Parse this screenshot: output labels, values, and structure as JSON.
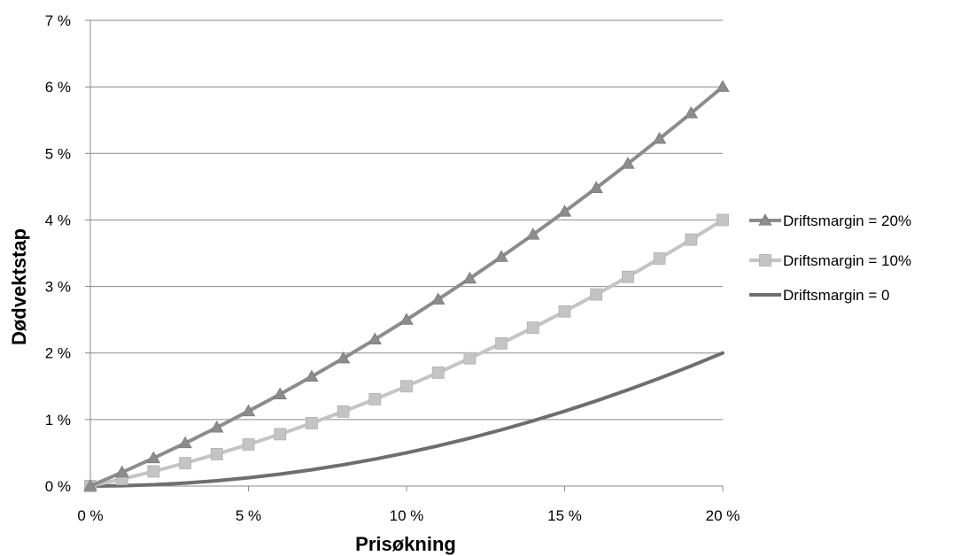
{
  "chart_data": {
    "type": "line",
    "title": "",
    "xlabel": "Prisøkning",
    "ylabel": "Dødvektstap",
    "xlim": [
      0,
      20
    ],
    "ylim": [
      0,
      7
    ],
    "x_ticks": [
      0,
      5,
      10,
      15,
      20
    ],
    "x_tick_labels": [
      "0 %",
      "5 %",
      "10 %",
      "15 %",
      "20 %"
    ],
    "y_ticks": [
      0,
      1,
      2,
      3,
      4,
      5,
      6,
      7
    ],
    "y_tick_labels": [
      "0 %",
      "1 %",
      "2 %",
      "3 %",
      "4 %",
      "5 %",
      "6 %",
      "7 %"
    ],
    "grid": "horizontal",
    "legend_position": "right",
    "x": [
      0,
      1,
      2,
      3,
      4,
      5,
      6,
      7,
      8,
      9,
      10,
      11,
      12,
      13,
      14,
      15,
      16,
      17,
      18,
      19,
      20
    ],
    "series": [
      {
        "name": "Driftsmargin = 20%",
        "marker": "triangle",
        "color": "#8c8c8c",
        "values": [
          0,
          0.205,
          0.42,
          0.645,
          0.88,
          1.125,
          1.38,
          1.645,
          1.92,
          2.205,
          2.5,
          2.805,
          3.12,
          3.445,
          3.78,
          4.125,
          4.48,
          4.845,
          5.22,
          5.605,
          6.0
        ]
      },
      {
        "name": "Driftsmargin = 10%",
        "marker": "square",
        "color": "#c4c4c4",
        "values": [
          0,
          0.105,
          0.22,
          0.345,
          0.48,
          0.625,
          0.78,
          0.945,
          1.12,
          1.305,
          1.5,
          1.705,
          1.92,
          2.145,
          2.38,
          2.625,
          2.88,
          3.145,
          3.42,
          3.705,
          4.0
        ]
      },
      {
        "name": "Driftsmargin = 0",
        "marker": "none",
        "color": "#6e6e6e",
        "values": [
          0,
          0.005,
          0.02,
          0.045,
          0.08,
          0.125,
          0.18,
          0.245,
          0.32,
          0.405,
          0.5,
          0.605,
          0.72,
          0.845,
          0.98,
          1.125,
          1.28,
          1.445,
          1.62,
          1.805,
          2.0
        ]
      }
    ]
  }
}
